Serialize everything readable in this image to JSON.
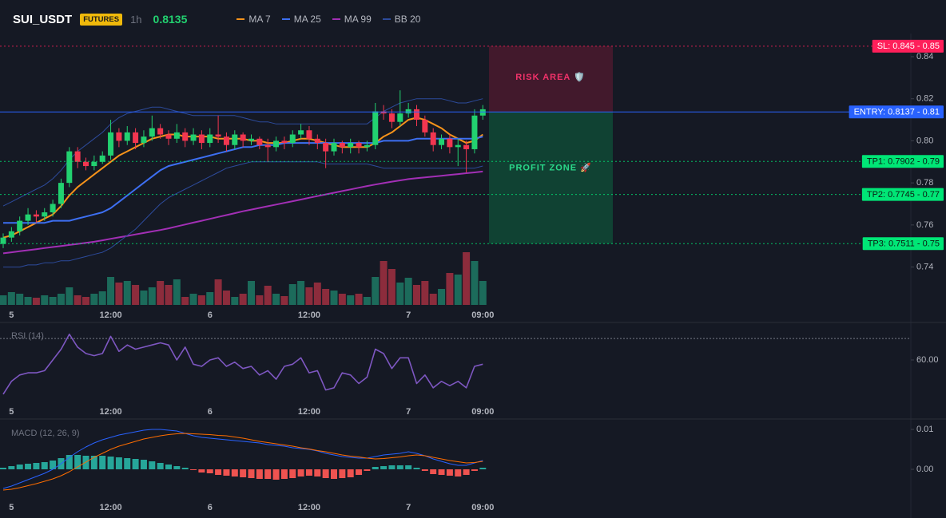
{
  "header": {
    "symbol": "SUI_USDT",
    "badge": "FUTURES",
    "interval": "1h",
    "price": 0.8135
  },
  "chart_data": [
    {
      "type": "candlestick",
      "categories": [
        null,
        "5",
        null,
        null,
        null,
        null,
        null,
        null,
        null,
        null,
        null,
        null,
        null,
        "12:00",
        null,
        null,
        null,
        null,
        null,
        null,
        null,
        null,
        null,
        null,
        null,
        "6",
        null,
        null,
        null,
        null,
        null,
        null,
        null,
        null,
        null,
        null,
        null,
        "12:00",
        null,
        null,
        null,
        null,
        null,
        null,
        null,
        null,
        null,
        null,
        null,
        "7",
        null,
        null,
        null,
        null,
        null,
        null,
        null,
        null,
        "09:00"
      ],
      "open": [
        0.751,
        0.754,
        0.757,
        0.762,
        0.765,
        0.764,
        0.766,
        0.77,
        0.78,
        0.795,
        0.79,
        0.788,
        0.79,
        0.793,
        0.804,
        0.8,
        0.804,
        0.799,
        0.802,
        0.806,
        0.803,
        0.801,
        0.804,
        0.8,
        0.803,
        0.799,
        0.803,
        0.802,
        0.798,
        0.803,
        0.8,
        0.801,
        0.798,
        0.797,
        0.8,
        0.799,
        0.803,
        0.805,
        0.801,
        0.799,
        0.795,
        0.799,
        0.797,
        0.799,
        0.797,
        0.798,
        0.814,
        0.813,
        0.809,
        0.813,
        0.815,
        0.81,
        0.804,
        0.798,
        0.801,
        0.797,
        0.798,
        0.796,
        0.812
      ],
      "high": [
        0.756,
        0.759,
        0.764,
        0.768,
        0.767,
        0.768,
        0.772,
        0.782,
        0.797,
        0.797,
        0.792,
        0.793,
        0.795,
        0.81,
        0.806,
        0.807,
        0.806,
        0.805,
        0.812,
        0.808,
        0.805,
        0.808,
        0.806,
        0.806,
        0.805,
        0.806,
        0.812,
        0.804,
        0.805,
        0.804,
        0.803,
        0.802,
        0.801,
        0.802,
        0.802,
        0.805,
        0.808,
        0.807,
        0.803,
        0.801,
        0.801,
        0.8,
        0.801,
        0.8,
        0.8,
        0.818,
        0.817,
        0.815,
        0.824,
        0.818,
        0.817,
        0.812,
        0.806,
        0.803,
        0.803,
        0.801,
        0.8,
        0.815,
        0.817
      ],
      "low": [
        0.749,
        0.752,
        0.755,
        0.76,
        0.761,
        0.762,
        0.764,
        0.768,
        0.778,
        0.787,
        0.786,
        0.786,
        0.789,
        0.791,
        0.797,
        0.798,
        0.796,
        0.797,
        0.8,
        0.801,
        0.798,
        0.799,
        0.797,
        0.798,
        0.796,
        0.797,
        0.799,
        0.795,
        0.796,
        0.797,
        0.798,
        0.796,
        0.79,
        0.795,
        0.796,
        0.797,
        0.801,
        0.798,
        0.796,
        0.787,
        0.793,
        0.794,
        0.794,
        0.794,
        0.795,
        0.796,
        0.81,
        0.806,
        0.807,
        0.811,
        0.807,
        0.802,
        0.795,
        0.796,
        0.794,
        0.788,
        0.785,
        0.794,
        0.81
      ],
      "close": [
        0.754,
        0.757,
        0.762,
        0.765,
        0.764,
        0.766,
        0.77,
        0.78,
        0.795,
        0.79,
        0.788,
        0.79,
        0.793,
        0.804,
        0.8,
        0.804,
        0.799,
        0.802,
        0.806,
        0.803,
        0.801,
        0.804,
        0.8,
        0.803,
        0.799,
        0.803,
        0.802,
        0.798,
        0.803,
        0.8,
        0.801,
        0.798,
        0.797,
        0.8,
        0.799,
        0.803,
        0.805,
        0.801,
        0.799,
        0.795,
        0.799,
        0.797,
        0.799,
        0.797,
        0.798,
        0.814,
        0.813,
        0.809,
        0.813,
        0.815,
        0.81,
        0.804,
        0.798,
        0.801,
        0.797,
        0.798,
        0.796,
        0.812,
        0.815
      ],
      "volume": [
        12,
        16,
        14,
        10,
        9,
        12,
        10,
        14,
        22,
        12,
        10,
        14,
        17,
        35,
        28,
        30,
        25,
        18,
        22,
        30,
        25,
        32,
        10,
        14,
        12,
        16,
        32,
        18,
        10,
        14,
        30,
        12,
        24,
        14,
        11,
        26,
        30,
        22,
        28,
        20,
        18,
        14,
        12,
        14,
        10,
        35,
        55,
        45,
        28,
        34,
        25,
        30,
        14,
        20,
        40,
        38,
        66,
        55,
        30
      ],
      "volume_lim": [
        0,
        100
      ],
      "up_color": "#22d170",
      "down_color": "#f23650",
      "volume_up_color": "#1c6b5b",
      "volume_down_color": "#8c2c3c",
      "ylim": [
        0.722,
        0.851
      ],
      "yticks": [
        0.74,
        0.76,
        0.78,
        {
          "value": 0.8,
          "label": "0.80"
        },
        0.82,
        0.84
      ],
      "series": [
        {
          "name": "MA 7",
          "color": "#f7931a",
          "values": [
            0.754,
            0.755,
            0.757,
            0.759,
            0.761,
            0.763,
            0.765,
            0.769,
            0.774,
            0.778,
            0.781,
            0.784,
            0.787,
            0.79,
            0.793,
            0.795,
            0.797,
            0.799,
            0.801,
            0.802,
            0.803,
            0.803,
            0.802,
            0.802,
            0.802,
            0.802,
            0.801,
            0.801,
            0.801,
            0.801,
            0.8,
            0.8,
            0.799,
            0.799,
            0.799,
            0.8,
            0.801,
            0.801,
            0.8,
            0.799,
            0.798,
            0.797,
            0.797,
            0.797,
            0.797,
            0.799,
            0.802,
            0.804,
            0.807,
            0.81,
            0.811,
            0.81,
            0.808,
            0.806,
            0.803,
            0.801,
            0.799,
            0.8,
            0.803
          ]
        },
        {
          "name": "MA 25",
          "color": "#3d6ff2",
          "values": [
            0.761,
            0.761,
            0.761,
            0.761,
            0.761,
            0.761,
            0.762,
            0.762,
            0.762,
            0.763,
            0.764,
            0.765,
            0.766,
            0.768,
            0.771,
            0.774,
            0.777,
            0.78,
            0.783,
            0.786,
            0.788,
            0.789,
            0.79,
            0.791,
            0.792,
            0.793,
            0.794,
            0.795,
            0.796,
            0.797,
            0.797,
            0.798,
            0.798,
            0.798,
            0.799,
            0.799,
            0.799,
            0.799,
            0.799,
            0.799,
            0.799,
            0.799,
            0.799,
            0.799,
            0.799,
            0.799,
            0.8,
            0.8,
            0.8,
            0.8,
            0.801,
            0.801,
            0.801,
            0.801,
            0.801,
            0.801,
            0.801,
            0.801,
            0.802
          ]
        },
        {
          "name": "MA 99",
          "color": "#a22fb5",
          "values": [
            0.7465,
            0.747,
            0.7475,
            0.748,
            0.7485,
            0.749,
            0.7495,
            0.75,
            0.7505,
            0.751,
            0.7515,
            0.752,
            0.7527,
            0.7534,
            0.7541,
            0.7548,
            0.7555,
            0.7562,
            0.7569,
            0.7576,
            0.7584,
            0.7593,
            0.7602,
            0.7611,
            0.762,
            0.7629,
            0.7638,
            0.7647,
            0.7656,
            0.7665,
            0.7673,
            0.7681,
            0.7689,
            0.7697,
            0.7705,
            0.7713,
            0.7721,
            0.7729,
            0.7737,
            0.7745,
            0.7753,
            0.7761,
            0.7769,
            0.7777,
            0.7785,
            0.7792,
            0.7799,
            0.7806,
            0.7812,
            0.7818,
            0.7822,
            0.7826,
            0.783,
            0.7834,
            0.7838,
            0.7842,
            0.7846,
            0.785,
            0.7854
          ]
        },
        {
          "name": "BB 20",
          "color": "#2d4b9c",
          "upper": [
            0.769,
            0.771,
            0.773,
            0.775,
            0.777,
            0.779,
            0.782,
            0.786,
            0.791,
            0.795,
            0.798,
            0.801,
            0.804,
            0.808,
            0.811,
            0.813,
            0.814,
            0.815,
            0.816,
            0.816,
            0.815,
            0.814,
            0.813,
            0.812,
            0.812,
            0.812,
            0.812,
            0.812,
            0.812,
            0.811,
            0.81,
            0.809,
            0.809,
            0.808,
            0.808,
            0.808,
            0.808,
            0.808,
            0.808,
            0.808,
            0.808,
            0.808,
            0.808,
            0.808,
            0.808,
            0.811,
            0.814,
            0.816,
            0.818,
            0.819,
            0.82,
            0.82,
            0.82,
            0.82,
            0.819,
            0.818,
            0.818,
            0.819,
            0.82
          ],
          "lower": [
            0.74,
            0.74,
            0.74,
            0.741,
            0.741,
            0.742,
            0.742,
            0.743,
            0.743,
            0.744,
            0.745,
            0.746,
            0.747,
            0.749,
            0.752,
            0.755,
            0.758,
            0.762,
            0.766,
            0.77,
            0.773,
            0.775,
            0.777,
            0.779,
            0.781,
            0.783,
            0.785,
            0.787,
            0.788,
            0.789,
            0.79,
            0.79,
            0.79,
            0.79,
            0.79,
            0.79,
            0.79,
            0.79,
            0.79,
            0.789,
            0.789,
            0.789,
            0.789,
            0.789,
            0.789,
            0.788,
            0.787,
            0.787,
            0.787,
            0.787,
            0.787,
            0.787,
            0.787,
            0.787,
            0.787,
            0.787,
            0.787,
            0.787,
            0.788
          ]
        }
      ],
      "zones": [
        {
          "label": "RISK AREA 🛡️",
          "from": 0.845,
          "to": 0.8137,
          "color": "#4a1a2e",
          "text_color": "#f2326a"
        },
        {
          "label": "PROFIT ZONE 🚀",
          "from": 0.8137,
          "to": 0.7511,
          "color": "#0f4a36",
          "text_color": "#2bd88a"
        }
      ],
      "price_lines": [
        {
          "label": "SL: 0.845 - 0.85",
          "value": 0.845,
          "color": "#ff1f5a",
          "text_color": "#ffffff",
          "dashed": true
        },
        {
          "label": "ENTRY: 0.8137 - 0.81",
          "value": 0.8137,
          "color": "#2962ff",
          "text_color": "#ffffff",
          "dashed": false
        },
        {
          "label": "TP1: 0.7902 - 0.79",
          "value": 0.7902,
          "color": "#00e676",
          "text_color": "#0b1a12",
          "dashed": true
        },
        {
          "label": "TP2: 0.7745 - 0.77",
          "value": 0.7745,
          "color": "#00e676",
          "text_color": "#0b1a12",
          "dashed": true
        },
        {
          "label": "TP3: 0.7511 - 0.75",
          "value": 0.7511,
          "color": "#00e676",
          "text_color": "#0b1a12",
          "dashed": true
        }
      ]
    },
    {
      "type": "line",
      "title": "RSI (14)",
      "ylim": [
        41,
        76
      ],
      "yticks": [
        {
          "value": 60,
          "label": "60.00"
        }
      ],
      "levels": [
        70
      ],
      "series": [
        {
          "color": "#7e57c2",
          "values": [
            44,
            50,
            53,
            54,
            54,
            55,
            60,
            65,
            72,
            66,
            63,
            62,
            63,
            71,
            64,
            67,
            65,
            66,
            67,
            68,
            67,
            60,
            66,
            58,
            57,
            60,
            61,
            57,
            59,
            56,
            57,
            53,
            55,
            51,
            57,
            58,
            61,
            54,
            55,
            46,
            47,
            54,
            53,
            49,
            52,
            65,
            63,
            56,
            61,
            61,
            49,
            53,
            47,
            50,
            48,
            50,
            47,
            57,
            58
          ]
        }
      ]
    },
    {
      "type": "macd",
      "title": "MACD (12, 26, 9)",
      "ylim": [
        -0.0068,
        0.0116
      ],
      "yticks": [
        {
          "value": 0,
          "label": "0.00"
        },
        0.01
      ],
      "histogram": {
        "up_color": "#26a69a",
        "down_color": "#ef5350",
        "values": [
          0.0004,
          0.0008,
          0.0012,
          0.0014,
          0.0016,
          0.0018,
          0.0022,
          0.0028,
          0.0036,
          0.0036,
          0.0034,
          0.0034,
          0.0034,
          0.0032,
          0.003,
          0.0028,
          0.0026,
          0.0024,
          0.002,
          0.0016,
          0.0012,
          0.0008,
          0.0004,
          -0.0002,
          -0.0008,
          -0.001,
          -0.0014,
          -0.0016,
          -0.0018,
          -0.002,
          -0.0022,
          -0.0024,
          -0.0024,
          -0.0026,
          -0.0024,
          -0.0022,
          -0.0018,
          -0.0016,
          -0.0018,
          -0.0022,
          -0.0024,
          -0.0022,
          -0.002,
          -0.0014,
          -0.0004,
          0.0006,
          0.0008,
          0.001,
          0.001,
          0.001,
          0.0004,
          -0.0004,
          -0.0012,
          -0.0014,
          -0.0016,
          -0.0018,
          -0.0014,
          -0.0004,
          0.0004
        ]
      },
      "series": [
        {
          "color": "#2962ff",
          "values": [
            -0.0048,
            -0.0042,
            -0.0034,
            -0.0026,
            -0.0018,
            -0.001,
            0,
            0.0014,
            0.003,
            0.0044,
            0.0056,
            0.0066,
            0.0074,
            0.008,
            0.0086,
            0.009,
            0.0094,
            0.0098,
            0.01,
            0.01,
            0.0098,
            0.0096,
            0.009,
            0.0084,
            0.008,
            0.0078,
            0.0076,
            0.0074,
            0.0072,
            0.007,
            0.0068,
            0.0066,
            0.0062,
            0.006,
            0.0058,
            0.0054,
            0.0052,
            0.005,
            0.0046,
            0.004,
            0.0036,
            0.0032,
            0.003,
            0.0028,
            0.0028,
            0.0032,
            0.0036,
            0.0038,
            0.004,
            0.0044,
            0.004,
            0.0034,
            0.0026,
            0.002,
            0.0014,
            0.001,
            0.001,
            0.0016,
            0.0022
          ]
        },
        {
          "color": "#ff6d00",
          "values": [
            -0.0052,
            -0.005,
            -0.0046,
            -0.0041,
            -0.0036,
            -0.003,
            -0.0024,
            -0.0016,
            -0.0006,
            0.0006,
            0.0018,
            0.003,
            0.004,
            0.005,
            0.0058,
            0.0064,
            0.007,
            0.0076,
            0.008,
            0.0084,
            0.0087,
            0.0089,
            0.009,
            0.0089,
            0.0088,
            0.0087,
            0.0085,
            0.0084,
            0.0081,
            0.0078,
            0.0074,
            0.007,
            0.0067,
            0.0064,
            0.0061,
            0.0058,
            0.0054,
            0.0051,
            0.0047,
            0.0044,
            0.004,
            0.0036,
            0.0033,
            0.0031,
            0.0028,
            0.0026,
            0.0027,
            0.0029,
            0.0031,
            0.0034,
            0.0036,
            0.0034,
            0.003,
            0.0026,
            0.0022,
            0.0019,
            0.0016,
            0.0017,
            0.002
          ]
        }
      ]
    }
  ]
}
